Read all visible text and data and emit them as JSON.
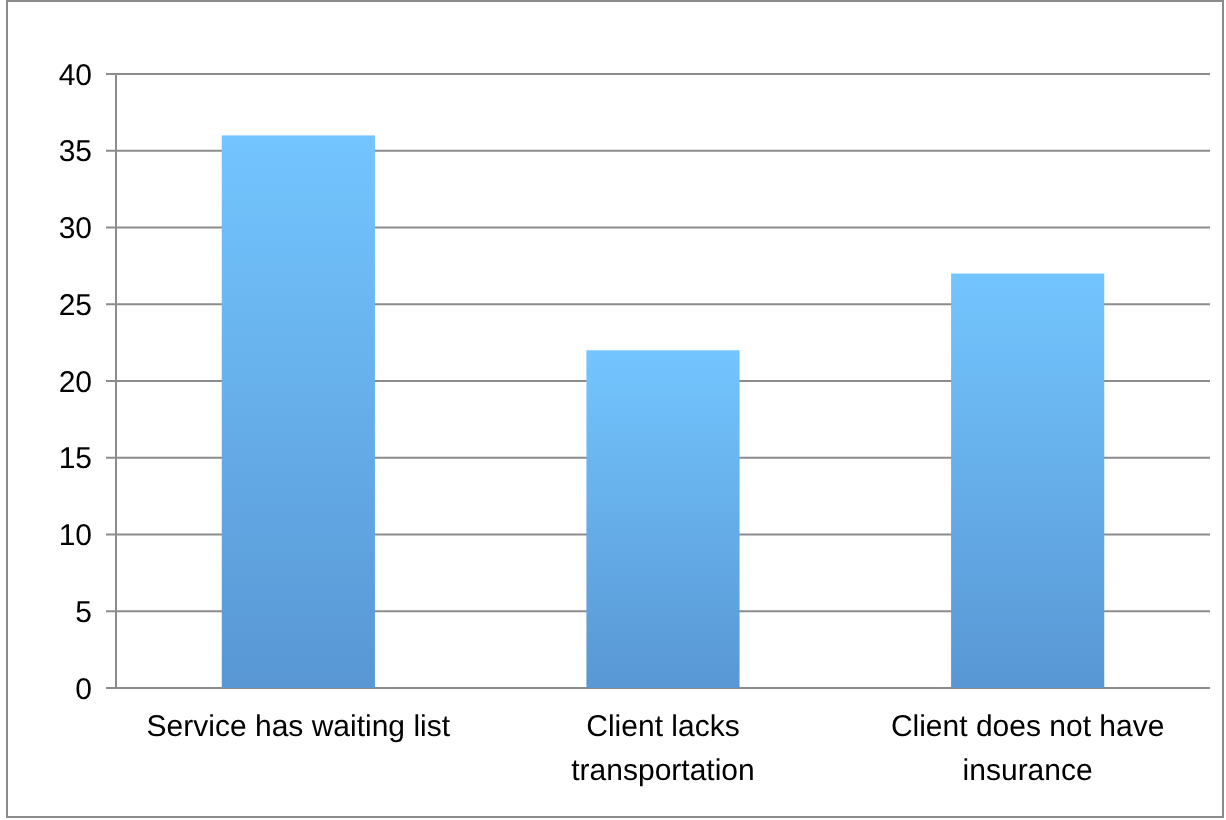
{
  "chart_data": {
    "type": "bar",
    "categories": [
      "Service has waiting list",
      "Client lacks transportation",
      "Client does not have insurance"
    ],
    "values": [
      36,
      22,
      27
    ],
    "color": "#5d9fe0",
    "ylim": [
      0,
      40
    ],
    "yticks": [
      0,
      5,
      10,
      15,
      20,
      25,
      30,
      35,
      40
    ],
    "grid": "y"
  }
}
